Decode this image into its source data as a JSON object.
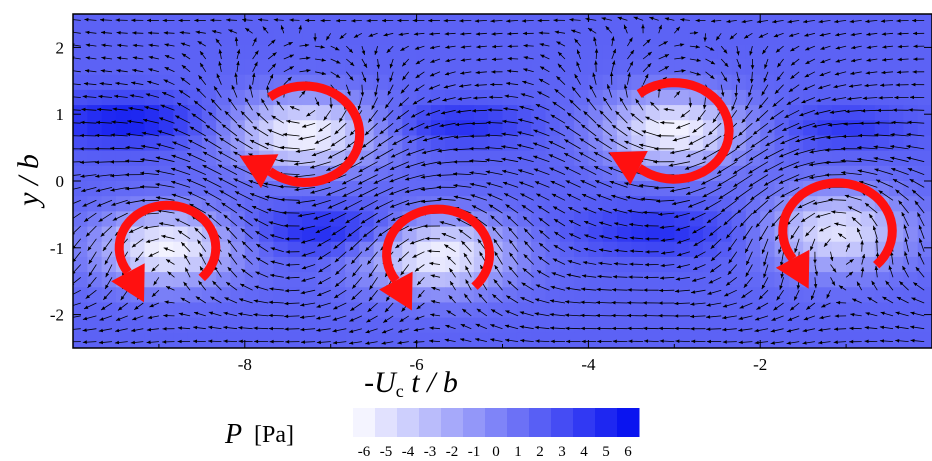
{
  "chart_data": {
    "type": "heatmap",
    "title": "",
    "xlabel": {
      "prefix": "-U",
      "subscript": "c",
      "suffix": " t / b"
    },
    "ylabel": "y / b",
    "xlim": [
      -10,
      0
    ],
    "ylim": [
      -2.5,
      2.5
    ],
    "x_ticks": [
      -8,
      -6,
      -4,
      -2
    ],
    "y_ticks": [
      2,
      1,
      0,
      -1,
      -2
    ],
    "colorbar": {
      "variable": "P",
      "unit": "[Pa]",
      "levels": [
        -6,
        -5,
        -4,
        -3,
        -2,
        -1,
        0,
        1,
        2,
        3,
        4,
        5,
        6
      ],
      "low_color": "#f4f4ff",
      "high_color": "#0a14f0"
    },
    "background_level": 1.8,
    "pressure_features": [
      {
        "kind": "low",
        "x": -7.3,
        "y": 0.7,
        "value": -6,
        "sx": 0.85,
        "sy": 0.55
      },
      {
        "kind": "low",
        "x": -8.9,
        "y": -1.0,
        "value": -6,
        "sx": 0.8,
        "sy": 0.55
      },
      {
        "kind": "low",
        "x": -5.75,
        "y": -1.1,
        "value": -6,
        "sx": 0.85,
        "sy": 0.55
      },
      {
        "kind": "low",
        "x": -3.0,
        "y": 0.75,
        "value": -6,
        "sx": 0.8,
        "sy": 0.55
      },
      {
        "kind": "low",
        "x": -1.1,
        "y": -0.75,
        "value": -5,
        "sx": 0.8,
        "sy": 0.6
      },
      {
        "kind": "high",
        "x": -9.4,
        "y": 0.9,
        "value": 5.5,
        "sx": 0.9,
        "sy": 0.35
      },
      {
        "kind": "high",
        "x": -7.0,
        "y": -0.75,
        "value": 5,
        "sx": 0.9,
        "sy": 0.35
      },
      {
        "kind": "high",
        "x": -5.5,
        "y": 0.85,
        "value": 4.5,
        "sx": 0.8,
        "sy": 0.3
      },
      {
        "kind": "high",
        "x": -3.2,
        "y": -0.75,
        "value": 4.5,
        "sx": 0.9,
        "sy": 0.35
      },
      {
        "kind": "high",
        "x": -1.0,
        "y": 0.8,
        "value": 4,
        "sx": 0.7,
        "sy": 0.3
      }
    ],
    "vortices": [
      {
        "x": -7.3,
        "y": 0.7,
        "r": 0.85,
        "rotation": "clockwise"
      },
      {
        "x": -8.9,
        "y": -1.0,
        "r": 0.75,
        "rotation": "counterclockwise"
      },
      {
        "x": -5.75,
        "y": -1.1,
        "r": 0.8,
        "rotation": "counterclockwise"
      },
      {
        "x": -3.0,
        "y": 0.75,
        "r": 0.85,
        "rotation": "clockwise"
      },
      {
        "x": -1.1,
        "y": -0.75,
        "r": 0.85,
        "rotation": "counterclockwise"
      }
    ],
    "vector_field": {
      "kind": "velocity",
      "color": "#000000"
    },
    "grid": false,
    "legend_position": "bottom-center"
  },
  "colors": {
    "arrow": "#ff1010",
    "vector": "#000000",
    "frame": "#000000"
  }
}
